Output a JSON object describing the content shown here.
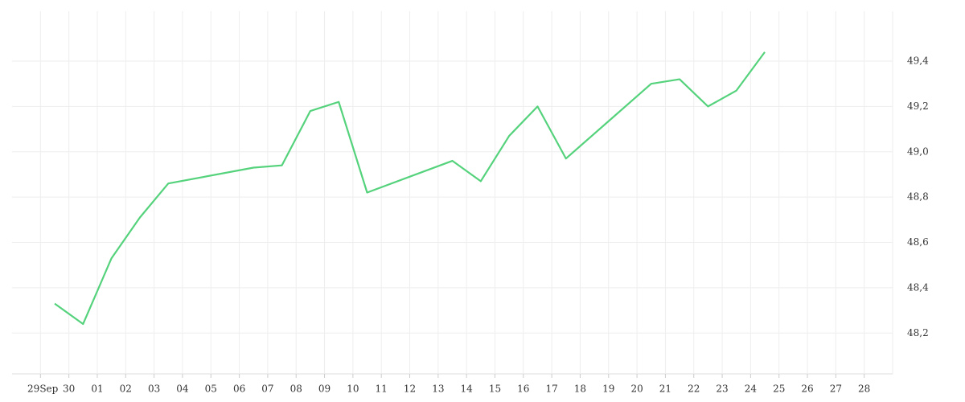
{
  "chart_data": {
    "type": "line",
    "x": [
      0.5,
      1.5,
      2.5,
      3.5,
      4.5,
      7.5,
      8.5,
      9.5,
      10.5,
      11.5,
      14.5,
      15.5,
      16.5,
      17.5,
      18.5,
      21.5,
      22.5,
      23.5,
      24.5,
      25.5
    ],
    "series": [
      {
        "color": "#55d27c",
        "values": [
          48.33,
          48.24,
          48.53,
          48.71,
          48.86,
          48.93,
          48.94,
          49.18,
          49.22,
          48.82,
          48.96,
          48.87,
          49.07,
          49.2,
          48.97,
          49.3,
          49.32,
          49.2,
          49.27,
          49.44
        ]
      }
    ],
    "month_label": "Sep",
    "xlim": [
      -1,
      30
    ],
    "xticks": [
      {
        "value": 0,
        "label": "29"
      },
      {
        "value": 1,
        "label": "30"
      },
      {
        "value": 2,
        "label": "01"
      },
      {
        "value": 3,
        "label": "02"
      },
      {
        "value": 4,
        "label": "03"
      },
      {
        "value": 5,
        "label": "04"
      },
      {
        "value": 6,
        "label": "05"
      },
      {
        "value": 7,
        "label": "06"
      },
      {
        "value": 8,
        "label": "07"
      },
      {
        "value": 9,
        "label": "08"
      },
      {
        "value": 10,
        "label": "09"
      },
      {
        "value": 11,
        "label": "10"
      },
      {
        "value": 12,
        "label": "11"
      },
      {
        "value": 13,
        "label": "12"
      },
      {
        "value": 14,
        "label": "13"
      },
      {
        "value": 15,
        "label": "14"
      },
      {
        "value": 16,
        "label": "15"
      },
      {
        "value": 17,
        "label": "16"
      },
      {
        "value": 18,
        "label": "17"
      },
      {
        "value": 19,
        "label": "18"
      },
      {
        "value": 20,
        "label": "19"
      },
      {
        "value": 21,
        "label": "20"
      },
      {
        "value": 22,
        "label": "21"
      },
      {
        "value": 23,
        "label": "22"
      },
      {
        "value": 24,
        "label": "23"
      },
      {
        "value": 25,
        "label": "24"
      },
      {
        "value": 26,
        "label": "25"
      },
      {
        "value": 27,
        "label": "26"
      },
      {
        "value": 28,
        "label": "27"
      },
      {
        "value": 29,
        "label": "28"
      }
    ],
    "ylim": [
      48.02,
      49.62
    ],
    "yticks": [
      {
        "value": 48.2,
        "label": "48,2"
      },
      {
        "value": 48.4,
        "label": "48,4"
      },
      {
        "value": 48.6,
        "label": "48,6"
      },
      {
        "value": 48.8,
        "label": "48,8"
      },
      {
        "value": 49.0,
        "label": "49,0"
      },
      {
        "value": 49.2,
        "label": "49,2"
      },
      {
        "value": 49.4,
        "label": "49,4"
      }
    ],
    "grid": true
  }
}
